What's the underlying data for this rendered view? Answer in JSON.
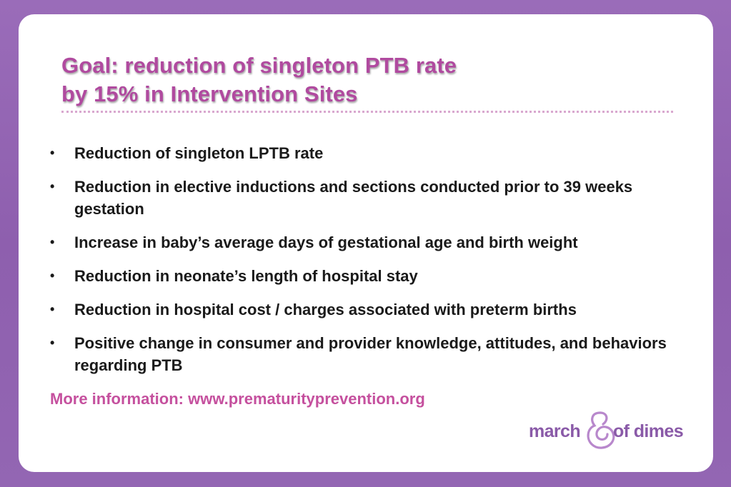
{
  "slide": {
    "title_line1": "Goal: reduction of singleton PTB rate",
    "title_line2": "by 15% in Intervention Sites",
    "bullet_symbol": "•",
    "bullets": [
      "Reduction of singleton LPTB rate",
      "Reduction in elective inductions and sections conducted prior to 39 weeks gestation",
      "Increase in baby’s average days of gestational age and birth weight",
      "Reduction in neonate’s length of hospital stay",
      "Reduction in hospital cost / charges associated with preterm births",
      "Positive change in consumer and provider knowledge, attitudes, and behaviors regarding PTB"
    ],
    "more_info": "More information: www.prematurityprevention.org"
  },
  "logo": {
    "left_word": "march",
    "right_word": "of dimes",
    "mark_icon": "mother-baby-logo-icon"
  },
  "colors": {
    "background": "#9366b3",
    "title": "#b04a9f",
    "link": "#c5509e",
    "logo": "#8a5aa8",
    "text": "#1a1a1a"
  }
}
